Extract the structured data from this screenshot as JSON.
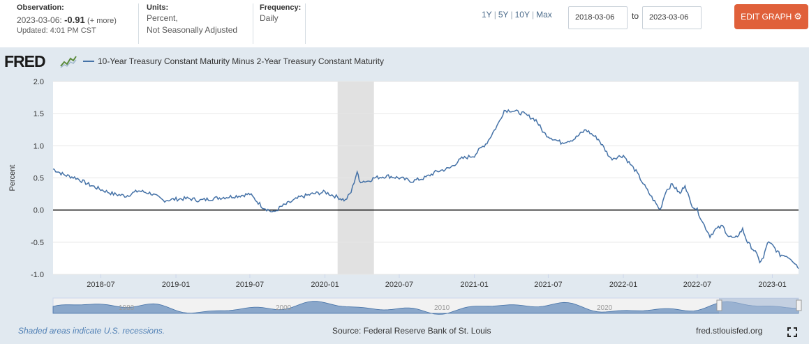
{
  "header": {
    "observation": {
      "label": "Observation:",
      "date": "2023-03-06:",
      "value": "-0.91",
      "more": "(+ more)",
      "updated": "Updated: 4:01 PM CST"
    },
    "units": {
      "label": "Units:",
      "line1": "Percent,",
      "line2": "Not Seasonally Adjusted"
    },
    "frequency": {
      "label": "Frequency:",
      "value": "Daily"
    },
    "ranges": [
      "1Y",
      "5Y",
      "10Y",
      "Max"
    ],
    "date_from": "2018-03-06",
    "to_label": "to",
    "date_to": "2023-03-06",
    "edit_label": "EDIT GRAPH",
    "edit_icon": "gear-icon"
  },
  "logo": {
    "text": "FRED",
    "icon": "chart-line-icon"
  },
  "legend": {
    "label": "10-Year Treasury Constant Maturity Minus 2-Year Treasury Constant Maturity",
    "color": "#4572a7"
  },
  "footer": {
    "recession_note": "Shaded areas indicate U.S. recessions.",
    "source": "Source: Federal Reserve Bank of St. Louis",
    "site": "fred.stlouisfed.org",
    "fullscreen_icon": "fullscreen-icon"
  },
  "navigator": {
    "labels": [
      "1980",
      "2000",
      "2010",
      "2020"
    ]
  },
  "chart_data": {
    "type": "line",
    "ylabel": "Percent",
    "ylim": [
      -1.0,
      2.0
    ],
    "yticks": [
      "2.0",
      "1.5",
      "1.0",
      "0.5",
      "0.0",
      "-0.5",
      "-1.0"
    ],
    "xticks": [
      "2018-07",
      "2019-01",
      "2019-07",
      "2020-01",
      "2020-07",
      "2021-01",
      "2021-07",
      "2022-01",
      "2022-07",
      "2023-01"
    ],
    "x_range": [
      "2018-03-06",
      "2023-03-06"
    ],
    "recession": [
      "2020-02-01",
      "2020-04-30"
    ],
    "series": [
      {
        "name": "10-Year Treasury Constant Maturity Minus 2-Year Treasury Constant Maturity",
        "color": "#4572a7",
        "points": [
          [
            "2018-03-06",
            0.64
          ],
          [
            "2018-04-01",
            0.55
          ],
          [
            "2018-05-01",
            0.5
          ],
          [
            "2018-06-01",
            0.4
          ],
          [
            "2018-07-01",
            0.32
          ],
          [
            "2018-08-01",
            0.25
          ],
          [
            "2018-09-01",
            0.22
          ],
          [
            "2018-10-01",
            0.3
          ],
          [
            "2018-11-01",
            0.26
          ],
          [
            "2018-12-01",
            0.15
          ],
          [
            "2019-01-01",
            0.17
          ],
          [
            "2019-02-01",
            0.18
          ],
          [
            "2019-03-01",
            0.15
          ],
          [
            "2019-04-01",
            0.18
          ],
          [
            "2019-05-01",
            0.2
          ],
          [
            "2019-06-01",
            0.22
          ],
          [
            "2019-07-01",
            0.25
          ],
          [
            "2019-08-01",
            0.05
          ],
          [
            "2019-08-28",
            -0.04
          ],
          [
            "2019-09-15",
            0.05
          ],
          [
            "2019-10-01",
            0.1
          ],
          [
            "2019-11-01",
            0.2
          ],
          [
            "2019-12-01",
            0.25
          ],
          [
            "2020-01-01",
            0.28
          ],
          [
            "2020-02-01",
            0.2
          ],
          [
            "2020-02-20",
            0.15
          ],
          [
            "2020-03-05",
            0.28
          ],
          [
            "2020-03-20",
            0.6
          ],
          [
            "2020-03-25",
            0.45
          ],
          [
            "2020-04-15",
            0.45
          ],
          [
            "2020-05-01",
            0.5
          ],
          [
            "2020-06-01",
            0.53
          ],
          [
            "2020-07-01",
            0.5
          ],
          [
            "2020-08-01",
            0.45
          ],
          [
            "2020-09-01",
            0.5
          ],
          [
            "2020-10-01",
            0.6
          ],
          [
            "2020-11-01",
            0.65
          ],
          [
            "2020-12-01",
            0.8
          ],
          [
            "2021-01-01",
            0.85
          ],
          [
            "2021-01-15",
            0.95
          ],
          [
            "2021-02-01",
            1.05
          ],
          [
            "2021-02-15",
            1.2
          ],
          [
            "2021-03-01",
            1.35
          ],
          [
            "2021-03-15",
            1.55
          ],
          [
            "2021-04-01",
            1.55
          ],
          [
            "2021-05-01",
            1.5
          ],
          [
            "2021-06-01",
            1.4
          ],
          [
            "2021-06-20",
            1.2
          ],
          [
            "2021-07-01",
            1.15
          ],
          [
            "2021-08-01",
            1.05
          ],
          [
            "2021-09-01",
            1.1
          ],
          [
            "2021-10-01",
            1.25
          ],
          [
            "2021-11-01",
            1.1
          ],
          [
            "2021-12-01",
            0.8
          ],
          [
            "2022-01-01",
            0.85
          ],
          [
            "2022-02-01",
            0.6
          ],
          [
            "2022-03-01",
            0.3
          ],
          [
            "2022-04-01",
            0.0
          ],
          [
            "2022-04-15",
            0.3
          ],
          [
            "2022-05-01",
            0.4
          ],
          [
            "2022-05-20",
            0.25
          ],
          [
            "2022-06-01",
            0.4
          ],
          [
            "2022-06-15",
            0.1
          ],
          [
            "2022-07-01",
            0.0
          ],
          [
            "2022-07-15",
            -0.2
          ],
          [
            "2022-08-01",
            -0.4
          ],
          [
            "2022-08-15",
            -0.3
          ],
          [
            "2022-09-01",
            -0.25
          ],
          [
            "2022-09-15",
            -0.4
          ],
          [
            "2022-10-01",
            -0.45
          ],
          [
            "2022-10-20",
            -0.3
          ],
          [
            "2022-11-01",
            -0.5
          ],
          [
            "2022-11-20",
            -0.65
          ],
          [
            "2022-12-01",
            -0.8
          ],
          [
            "2022-12-10",
            -0.75
          ],
          [
            "2022-12-20",
            -0.5
          ],
          [
            "2023-01-01",
            -0.55
          ],
          [
            "2023-01-20",
            -0.7
          ],
          [
            "2023-02-01",
            -0.7
          ],
          [
            "2023-02-15",
            -0.75
          ],
          [
            "2023-03-01",
            -0.85
          ],
          [
            "2023-03-06",
            -0.91
          ]
        ]
      }
    ]
  }
}
